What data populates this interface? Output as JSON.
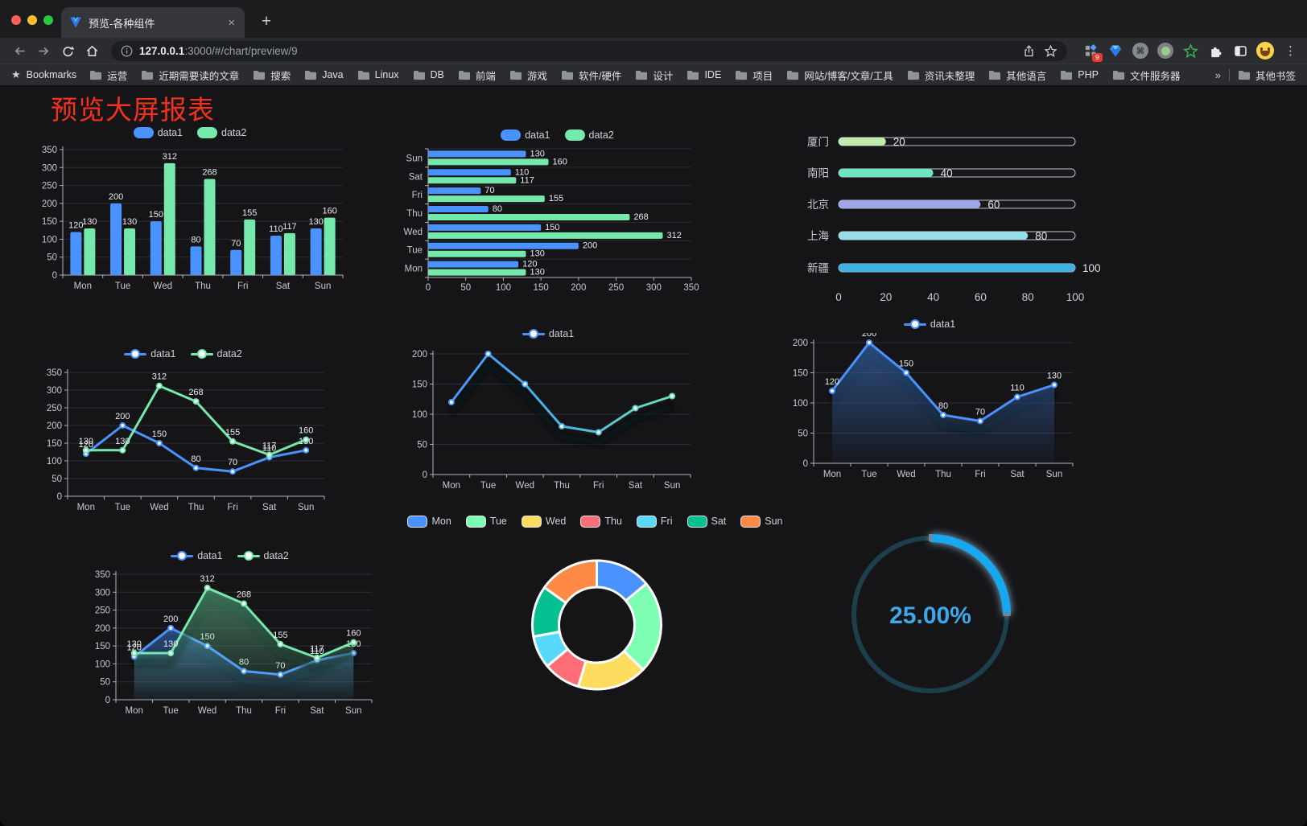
{
  "browser": {
    "tab_title": "预览-各种组件",
    "close_glyph": "×",
    "new_tab_glyph": "+",
    "url_host": "127.0.0.1",
    "url_rest": ":3000/#/chart/preview/9",
    "bookmarks_label": "Bookmarks",
    "bookmarks": [
      "运营",
      "近期需要读的文章",
      "搜索",
      "Java",
      "Linux",
      "DB",
      "前端",
      "游戏",
      "软件/硬件",
      "设计",
      "IDE",
      "项目",
      "网站/博客/文章/工具",
      "资讯未整理",
      "其他语言",
      "PHP",
      "文件服务器"
    ],
    "bookmarks_overflow": "»",
    "other_bookmarks": "其他书签",
    "extension_badge": "9",
    "menu_glyph": "⋮",
    "bookmark_star_glyph": "★",
    "icons": {
      "omnibox-left": "info-icon",
      "omnibox-right": [
        "share-icon",
        "star-icon"
      ],
      "extensions": [
        "grid-extension-icon",
        "gem-icon",
        "command-circle-icon",
        "record-circle-icon",
        "green-star-icon",
        "puzzle-icon",
        "side-panel-icon",
        "profile-avatar",
        "menu-dots-icon"
      ]
    }
  },
  "page": {
    "title": "预览大屏报表",
    "title_color": "#f4301e",
    "background": "#151518"
  },
  "chart_data": [
    {
      "cell": "c1",
      "type": "bar",
      "orientation": "vertical",
      "categories": [
        "Mon",
        "Tue",
        "Wed",
        "Thu",
        "Fri",
        "Sat",
        "Sun"
      ],
      "series": [
        {
          "name": "data1",
          "color": "#4992ff",
          "values": [
            120,
            200,
            150,
            80,
            70,
            110,
            130
          ]
        },
        {
          "name": "data2",
          "color": "#75e8ab",
          "values": [
            130,
            130,
            312,
            268,
            155,
            117,
            160
          ]
        }
      ],
      "ylim": [
        0,
        350
      ],
      "ystep": 50,
      "legend": "rect",
      "labels": true,
      "grid": true
    },
    {
      "cell": "c2",
      "type": "bar",
      "orientation": "horizontal",
      "categories": [
        "Mon",
        "Tue",
        "Wed",
        "Thu",
        "Fri",
        "Sat",
        "Sun"
      ],
      "series": [
        {
          "name": "data1",
          "color": "#4992ff",
          "values": [
            120,
            200,
            150,
            80,
            70,
            110,
            130
          ]
        },
        {
          "name": "data2",
          "color": "#75e8ab",
          "values": [
            130,
            130,
            312,
            268,
            155,
            117,
            160
          ]
        }
      ],
      "xlim": [
        0,
        350
      ],
      "xstep": 50,
      "legend": "rect",
      "labels": true,
      "grid": true
    },
    {
      "cell": "c3",
      "type": "bar",
      "variant": "progress",
      "items": [
        {
          "label": "厦门",
          "value": 20,
          "color": "#c4ebad"
        },
        {
          "label": "南阳",
          "value": 40,
          "color": "#6be6c1"
        },
        {
          "label": "北京",
          "value": 60,
          "color": "#a0a7e6"
        },
        {
          "label": "上海",
          "value": 80,
          "color": "#96dee8"
        },
        {
          "label": "新疆",
          "value": 100,
          "color": "#3fb1e3"
        }
      ],
      "xlim": [
        0,
        100
      ],
      "xticks": [
        0,
        20,
        40,
        60,
        80,
        100
      ],
      "labels": true
    },
    {
      "cell": "c4",
      "type": "line",
      "categories": [
        "Mon",
        "Tue",
        "Wed",
        "Thu",
        "Fri",
        "Sat",
        "Sun"
      ],
      "series": [
        {
          "name": "data1",
          "color": "#4992ff",
          "values": [
            120,
            200,
            150,
            80,
            70,
            110,
            130
          ]
        },
        {
          "name": "data2",
          "color": "#75e8ab",
          "values": [
            130,
            130,
            312,
            268,
            155,
            117,
            160
          ]
        }
      ],
      "ylim": [
        0,
        350
      ],
      "ystep": 50,
      "legend": "dot",
      "labels": true,
      "grid": true
    },
    {
      "cell": "c5",
      "type": "line",
      "categories": [
        "Mon",
        "Tue",
        "Wed",
        "Thu",
        "Fri",
        "Sat",
        "Sun"
      ],
      "series": [
        {
          "name": "data1",
          "gradient": [
            "#4992ff",
            "#49b5e8",
            "#6fe8a8"
          ],
          "values": [
            120,
            200,
            150,
            80,
            70,
            110,
            130
          ]
        }
      ],
      "ylim": [
        0,
        200
      ],
      "ystep": 50,
      "legend": "dot",
      "labels": false,
      "grid": true,
      "shadow": true
    },
    {
      "cell": "c6",
      "type": "area",
      "categories": [
        "Mon",
        "Tue",
        "Wed",
        "Thu",
        "Fri",
        "Sat",
        "Sun"
      ],
      "series": [
        {
          "name": "data1",
          "color": "#4992ff",
          "values": [
            120,
            200,
            150,
            80,
            70,
            110,
            130
          ]
        }
      ],
      "ylim": [
        0,
        200
      ],
      "ystep": 50,
      "legend": "dot",
      "labels": true,
      "grid": true,
      "shadow": true
    },
    {
      "cell": "c7",
      "type": "area",
      "categories": [
        "Mon",
        "Tue",
        "Wed",
        "Thu",
        "Fri",
        "Sat",
        "Sun"
      ],
      "series": [
        {
          "name": "data1",
          "color": "#4992ff",
          "values": [
            120,
            200,
            150,
            80,
            70,
            110,
            130
          ]
        },
        {
          "name": "data2",
          "color": "#75e8ab",
          "values": [
            130,
            130,
            312,
            268,
            155,
            117,
            160
          ]
        }
      ],
      "ylim": [
        0,
        350
      ],
      "ystep": 50,
      "legend": "dot",
      "labels": true,
      "grid": true,
      "shadow": true
    },
    {
      "cell": "c8",
      "type": "pie",
      "donut": true,
      "items": [
        {
          "label": "Mon",
          "value": 120,
          "color": "#4992ff"
        },
        {
          "label": "Tue",
          "value": 200,
          "color": "#7cffb2"
        },
        {
          "label": "Wed",
          "value": 150,
          "color": "#fddd60"
        },
        {
          "label": "Thu",
          "value": 80,
          "color": "#ff6e76"
        },
        {
          "label": "Fri",
          "value": 70,
          "color": "#58d9f9"
        },
        {
          "label": "Sat",
          "value": 110,
          "color": "#05c091"
        },
        {
          "label": "Sun",
          "value": 130,
          "color": "#ff8a45"
        }
      ],
      "legend": "pie-rect"
    },
    {
      "cell": "c9",
      "type": "gauge",
      "value": 25,
      "label": "25.00%",
      "color": "#18a8f0",
      "track_color": "#1d3f4c",
      "text_color": "#3fa7e8"
    }
  ]
}
